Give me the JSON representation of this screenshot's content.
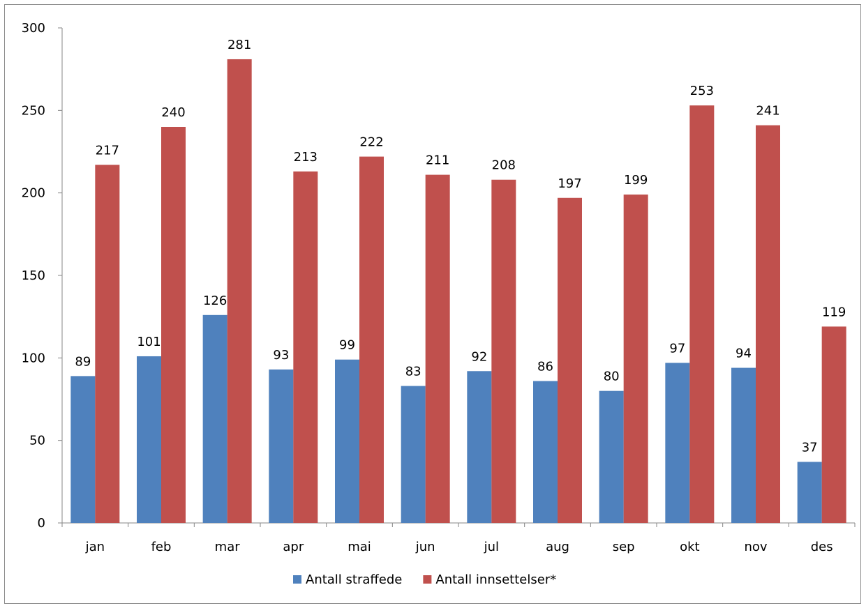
{
  "chart_data": {
    "type": "bar",
    "title": "",
    "xlabel": "",
    "ylabel": "",
    "categories": [
      "jan",
      "feb",
      "mar",
      "apr",
      "mai",
      "jun",
      "jul",
      "aug",
      "sep",
      "okt",
      "nov",
      "des"
    ],
    "series": [
      {
        "name": "Antall straffede",
        "color": "#4f81bd",
        "values": [
          89,
          101,
          126,
          93,
          99,
          83,
          92,
          86,
          80,
          97,
          94,
          37
        ]
      },
      {
        "name": "Antall innsettelser*",
        "color": "#c0504d",
        "values": [
          217,
          240,
          281,
          213,
          222,
          211,
          208,
          197,
          199,
          253,
          241,
          119
        ]
      }
    ],
    "ylim": [
      0,
      300
    ],
    "yticks": [
      "0",
      "50",
      "100",
      "150",
      "200",
      "250",
      "300"
    ],
    "grid": false,
    "legend_position": "bottom"
  }
}
